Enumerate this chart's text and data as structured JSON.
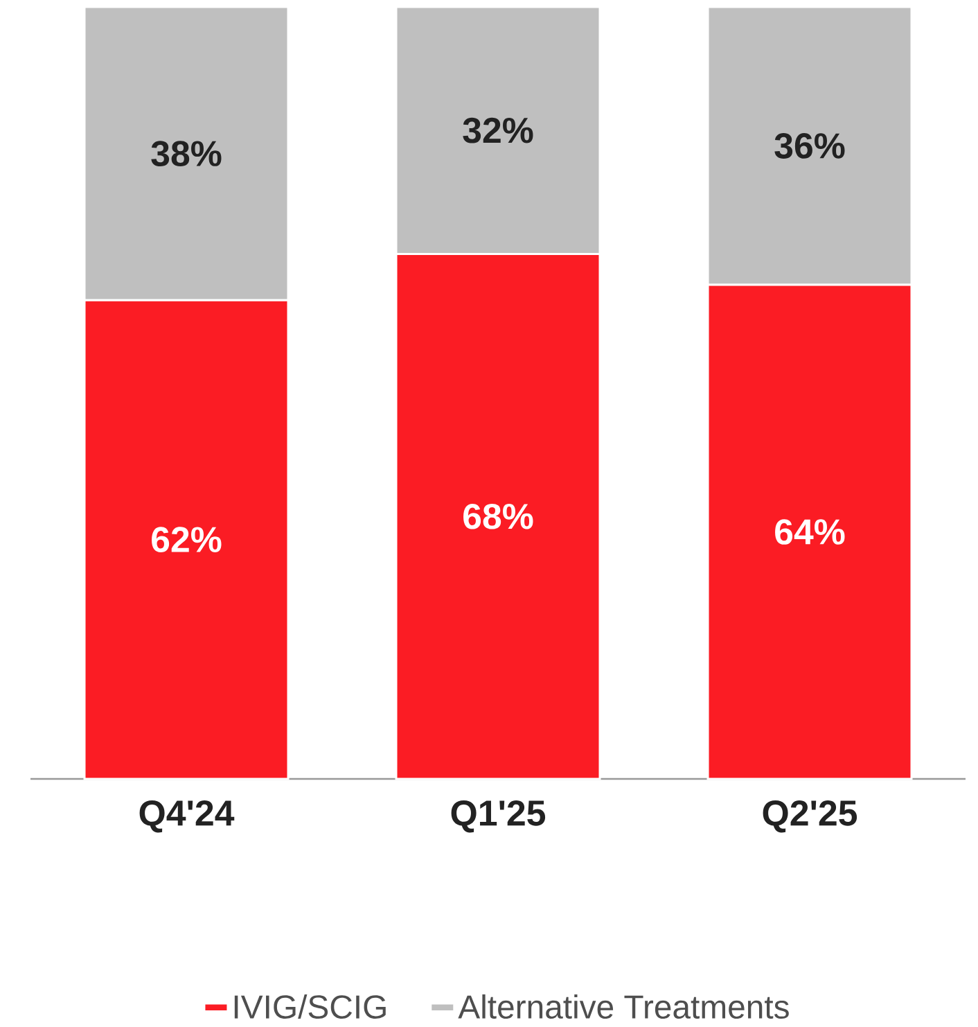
{
  "chart_data": {
    "type": "bar",
    "stacked": true,
    "categories": [
      "Q4'24",
      "Q1'25",
      "Q2'25"
    ],
    "series": [
      {
        "name": "IVIG/SCIG",
        "color": "#fb1c24",
        "values": [
          62,
          68,
          64
        ],
        "value_labels": [
          "62%",
          "68%",
          "64%"
        ]
      },
      {
        "name": "Alternative Treatments",
        "color": "#bfbfbf",
        "values": [
          38,
          32,
          36
        ],
        "value_labels": [
          "38%",
          "32%",
          "36%"
        ]
      }
    ],
    "ylim": [
      0,
      100
    ],
    "tick_labels": "x",
    "legend": "bottom"
  }
}
